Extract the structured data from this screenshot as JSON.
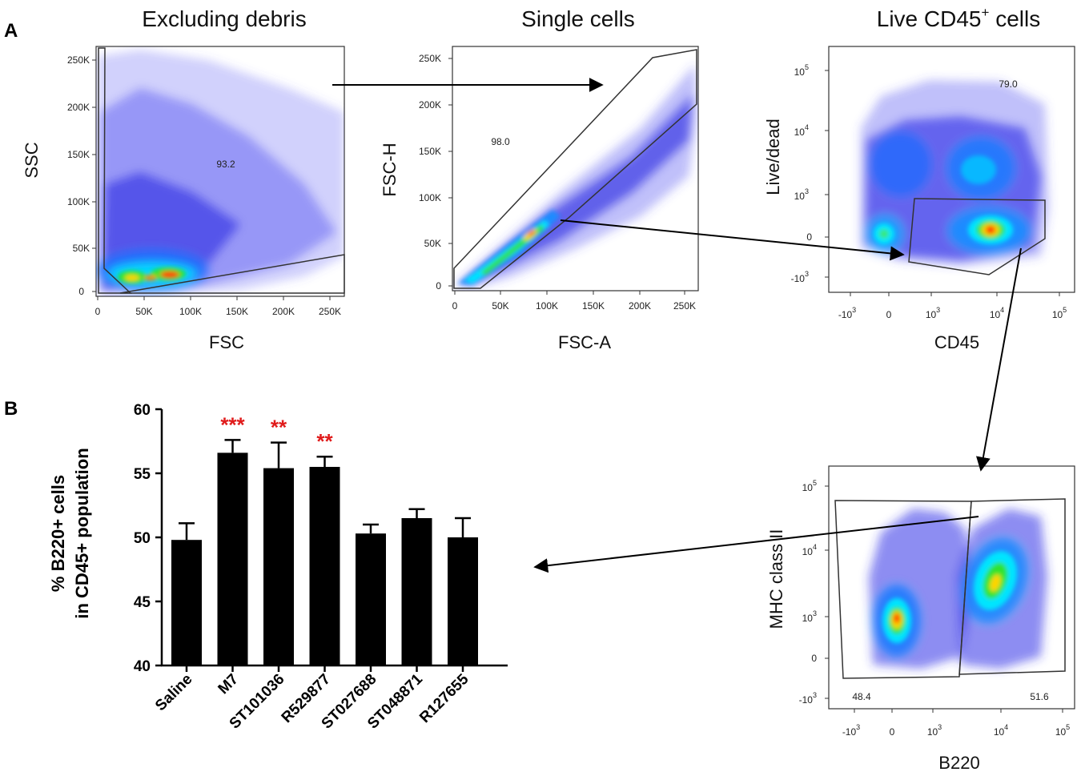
{
  "panels": {
    "a_label": "A",
    "b_label": "B"
  },
  "colors": {
    "bar": "#000000",
    "significance": "#e01b1b",
    "density_low": "#1a1aff",
    "density_mid": "#00e0ff",
    "density_high": "#ff0000"
  },
  "flow_plots": [
    {
      "id": "debris",
      "title": "Excluding debris",
      "xlabel": "FSC",
      "ylabel": "SSC",
      "x_ticks": [
        "0",
        "50K",
        "100K",
        "150K",
        "200K",
        "250K"
      ],
      "y_ticks": [
        "0",
        "50K",
        "100K",
        "150K",
        "200K",
        "250K"
      ],
      "gates": [
        {
          "value": "93.2"
        }
      ]
    },
    {
      "id": "singlets",
      "title": "Single cells",
      "xlabel": "FSC-A",
      "ylabel": "FSC-H",
      "x_ticks": [
        "0",
        "50K",
        "100K",
        "150K",
        "200K",
        "250K"
      ],
      "y_ticks": [
        "0",
        "50K",
        "100K",
        "150K",
        "200K",
        "250K"
      ],
      "gates": [
        {
          "value": "98.0"
        }
      ]
    },
    {
      "id": "live-cd45",
      "title_main": "Live CD45",
      "title_sup": "+",
      "title_end": " cells",
      "xlabel": "CD45",
      "ylabel": "Live/dead",
      "x_ticks": [
        {
          "base": "-10",
          "exp": "3"
        },
        {
          "base": "0",
          "exp": ""
        },
        {
          "base": "10",
          "exp": "3"
        },
        {
          "base": "10",
          "exp": "4"
        },
        {
          "base": "10",
          "exp": "5"
        }
      ],
      "y_ticks": [
        {
          "base": "-10",
          "exp": "3"
        },
        {
          "base": "0",
          "exp": ""
        },
        {
          "base": "10",
          "exp": "3"
        },
        {
          "base": "10",
          "exp": "4"
        },
        {
          "base": "10",
          "exp": "5"
        }
      ],
      "gates": [
        {
          "value": "79.0"
        }
      ]
    },
    {
      "id": "b220-mhc",
      "xlabel": "B220",
      "ylabel": "MHC class II",
      "x_ticks": [
        {
          "base": "-10",
          "exp": "3"
        },
        {
          "base": "0",
          "exp": ""
        },
        {
          "base": "10",
          "exp": "3"
        },
        {
          "base": "10",
          "exp": "4"
        },
        {
          "base": "10",
          "exp": "5"
        }
      ],
      "y_ticks": [
        {
          "base": "-10",
          "exp": "3"
        },
        {
          "base": "0",
          "exp": ""
        },
        {
          "base": "10",
          "exp": "3"
        },
        {
          "base": "10",
          "exp": "4"
        },
        {
          "base": "10",
          "exp": "5"
        }
      ],
      "gates": [
        {
          "value": "48.4"
        },
        {
          "value": "51.6"
        }
      ]
    }
  ],
  "chart_data": {
    "type": "bar",
    "title": "",
    "xlabel": "",
    "ylabel_line1": "% B220+ cells",
    "ylabel_line2": "in CD45+ population",
    "ylim": [
      40,
      60
    ],
    "y_ticks": [
      40,
      45,
      50,
      55,
      60
    ],
    "categories": [
      "Saline",
      "M7",
      "ST101036",
      "R529877",
      "ST027688",
      "ST048871",
      "R127655"
    ],
    "values": [
      49.8,
      56.6,
      55.4,
      55.5,
      50.3,
      51.5,
      50.0
    ],
    "errors": [
      1.3,
      1.0,
      2.0,
      0.8,
      0.7,
      0.7,
      1.5
    ],
    "significance": [
      "",
      "***",
      "**",
      "**",
      "",
      "",
      ""
    ]
  }
}
